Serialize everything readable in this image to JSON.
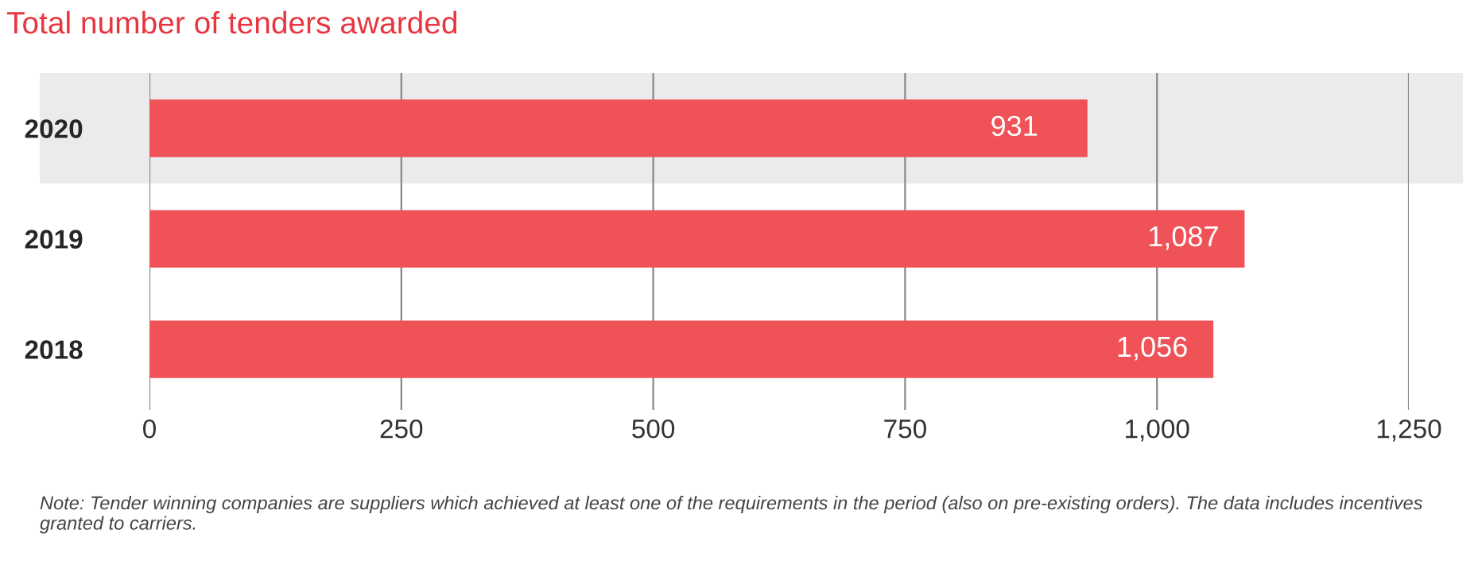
{
  "chart_data": {
    "type": "bar",
    "orientation": "horizontal",
    "title": "Total number of tenders awarded",
    "categories": [
      "2020",
      "2019",
      "2018"
    ],
    "values": [
      931,
      1087,
      1056
    ],
    "color": "#ef5257",
    "data_labels": true,
    "value_labels": [
      "931",
      "1,087",
      "1,056"
    ],
    "xlim": [
      0,
      1250
    ],
    "xticks": [
      0,
      {
        "value": 250,
        "label": "250"
      },
      {
        "value": 500,
        "label": "500"
      },
      {
        "value": 750,
        "label": "750"
      },
      {
        "value": 1000,
        "label": "1,000"
      },
      {
        "value": 1250,
        "label": "1,250"
      }
    ],
    "grid": "x",
    "legend": false,
    "bands": [
      {
        "axis": "y",
        "from": "2020",
        "to": "2020",
        "color": "#ebebeb"
      }
    ],
    "annotations": [
      "Note: Tender winning companies are suppliers which achieved at least one of the requirements in the period (also on pre-existing orders). The data includes incentives granted to carriers."
    ]
  }
}
